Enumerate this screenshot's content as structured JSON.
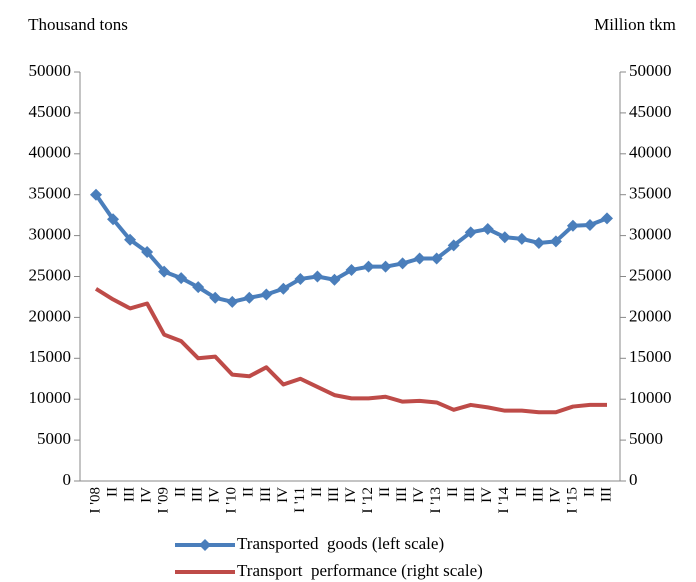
{
  "chart_data": {
    "type": "line",
    "y_label": "Thousand tons",
    "y2_label": "Million tkm",
    "categories": [
      "I '08",
      "II",
      "III",
      "IV",
      "I '09",
      "II",
      "III",
      "IV",
      "I '10",
      "II",
      "III",
      "IV",
      "I '11",
      "II",
      "III",
      "IV",
      "I '12",
      "II",
      "III",
      "IV",
      "I '13",
      "II",
      "III",
      "IV",
      "I '14",
      "II",
      "III",
      "IV",
      "I '15",
      "II",
      "III"
    ],
    "series": [
      {
        "name": "Transported  goods (left scale)",
        "color": "#4a7ebb",
        "marker": "diamond",
        "axis": "y",
        "values": [
          35000,
          32000,
          29500,
          28000,
          25600,
          24800,
          23700,
          22400,
          21900,
          22400,
          22800,
          23500,
          24700,
          25000,
          24600,
          25800,
          26200,
          26200,
          26600,
          27200,
          27200,
          28800,
          30400,
          30800,
          29800,
          29600,
          29100,
          29300,
          31200,
          31300,
          32100
        ]
      },
      {
        "name": "Transport  performance (right scale)",
        "color": "#be4b48",
        "axis": "y2",
        "values": [
          23500,
          22200,
          21100,
          21700,
          17900,
          17100,
          15000,
          15200,
          13000,
          12800,
          13900,
          11800,
          12500,
          11500,
          10500,
          10100,
          10100,
          10300,
          9700,
          9800,
          9600,
          8700,
          9300,
          9000,
          8600,
          8600,
          8400,
          8400,
          9100,
          9300,
          9300
        ]
      }
    ],
    "ylim": [
      0,
      50000
    ],
    "yticks": [
      0,
      5000,
      10000,
      15000,
      20000,
      25000,
      30000,
      35000,
      40000,
      45000,
      50000
    ],
    "y2lim": [
      0,
      50000
    ],
    "y2ticks": [
      0,
      5000,
      10000,
      15000,
      20000,
      25000,
      30000,
      35000,
      40000,
      45000,
      50000
    ],
    "grid": false,
    "legend": "bottom"
  }
}
